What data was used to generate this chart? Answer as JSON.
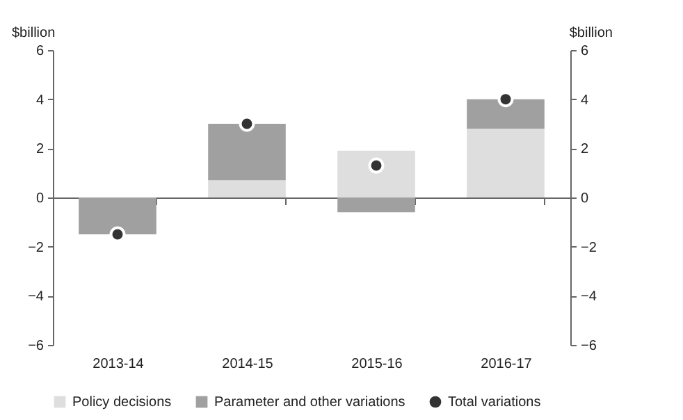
{
  "chart_data": {
    "type": "bar",
    "stacked": true,
    "ylabel": "$billion",
    "y2label": "$billion",
    "categories": [
      "2013-14",
      "2014-15",
      "2015-16",
      "2016-17"
    ],
    "series": [
      {
        "name": "Policy decisions",
        "color": "#dedede",
        "values": [
          0,
          0.7,
          1.9,
          2.8
        ]
      },
      {
        "name": "Parameter and other variations",
        "color": "#a0a0a0",
        "values": [
          -1.5,
          2.3,
          -0.6,
          1.2
        ]
      },
      {
        "name": "Total variations",
        "color": "#333333",
        "type": "scatter",
        "marker": "circle",
        "values": [
          -1.5,
          3.0,
          1.3,
          4.0
        ]
      }
    ],
    "ylim": [
      -6,
      6
    ],
    "yticks": [
      -6,
      -4,
      -2,
      0,
      2,
      4,
      6
    ],
    "y2lim": [
      -6,
      6
    ],
    "y2ticks": [
      -6,
      -4,
      -2,
      0,
      2,
      4,
      6
    ],
    "legend": "bottom"
  }
}
